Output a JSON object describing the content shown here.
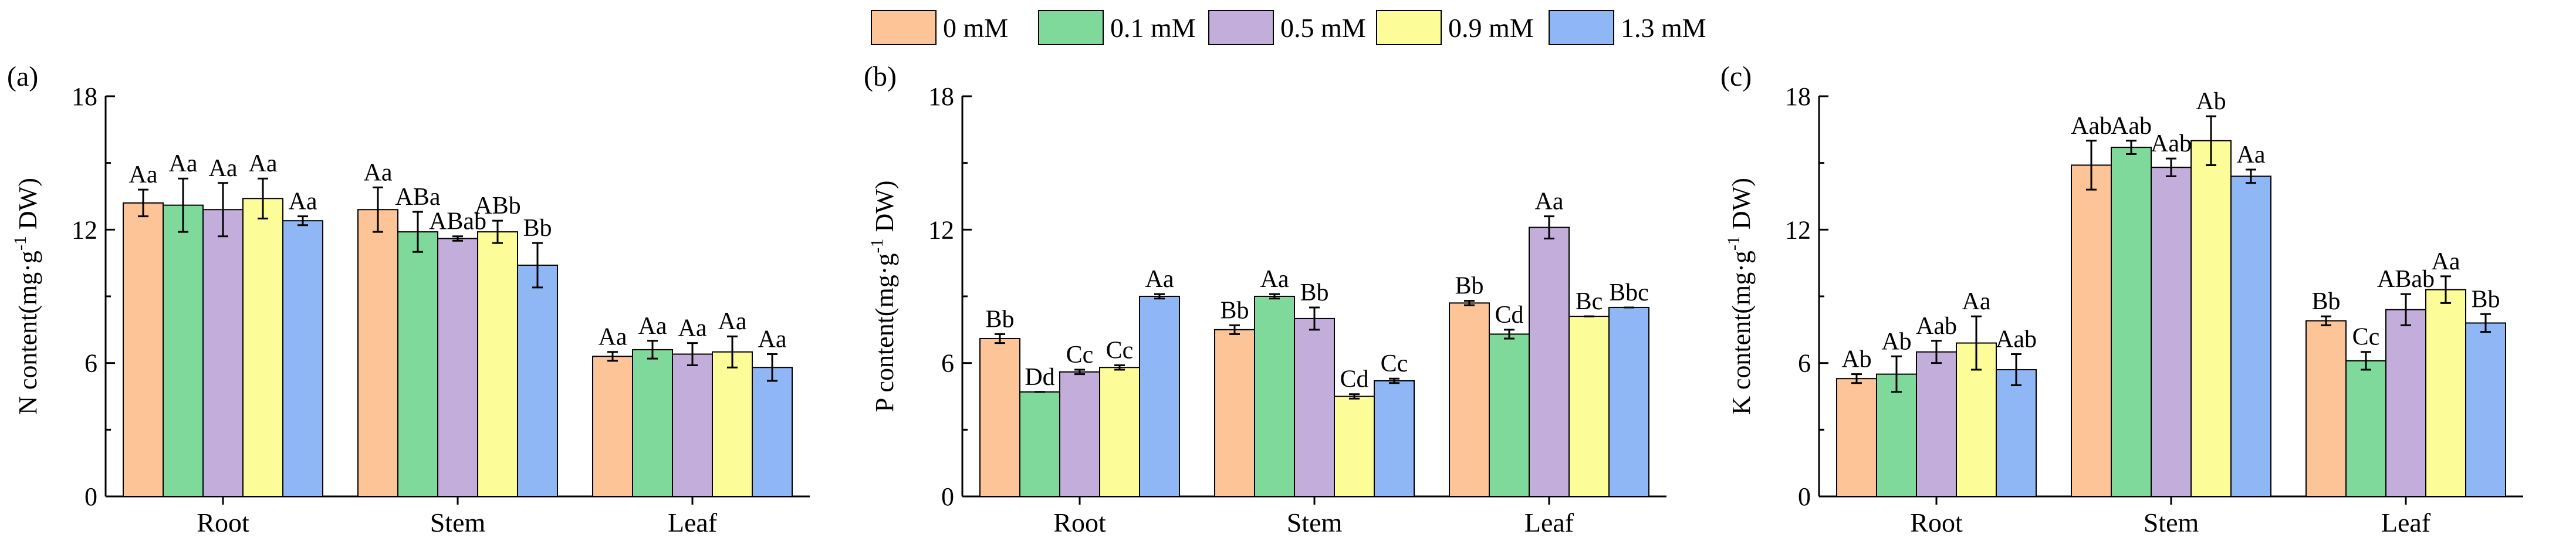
{
  "legend": [
    "0 mM",
    "0.1 mM",
    "0.5 mM",
    "0.9 mM",
    "1.3 mM"
  ],
  "colors": [
    "#FDC597",
    "#7FD99B",
    "#C3AEDB",
    "#FCFC99",
    "#8FB7F5"
  ],
  "chart_data": [
    {
      "type": "bar",
      "panel": "(a)",
      "ylabel_prefix": "N content(mg·g",
      "ylabel_sup": "-1",
      "ylabel_suffix": " DW)",
      "ylim": [
        0,
        18
      ],
      "yticks": [
        "0",
        "6",
        "12",
        "18"
      ],
      "categories": [
        "Root",
        "Stem",
        "Leaf"
      ],
      "series": [
        {
          "name": "0 mM",
          "values": [
            13.2,
            12.9,
            6.3
          ],
          "errors": [
            0.6,
            1.0,
            0.2
          ],
          "labels": [
            "Aa",
            "Aa",
            "Aa"
          ]
        },
        {
          "name": "0.1 mM",
          "values": [
            13.1,
            11.9,
            6.6
          ],
          "errors": [
            1.2,
            0.9,
            0.4
          ],
          "labels": [
            "Aa",
            "ABa",
            "Aa"
          ]
        },
        {
          "name": "0.5 mM",
          "values": [
            12.9,
            11.6,
            6.4
          ],
          "errors": [
            1.2,
            0.1,
            0.5
          ],
          "labels": [
            "Aa",
            "ABab",
            "Aa"
          ]
        },
        {
          "name": "0.9 mM",
          "values": [
            13.4,
            11.9,
            6.5
          ],
          "errors": [
            0.9,
            0.5,
            0.7
          ],
          "labels": [
            "Aa",
            "ABb",
            "Aa"
          ]
        },
        {
          "name": "1.3 mM",
          "values": [
            12.4,
            10.4,
            5.8
          ],
          "errors": [
            0.2,
            1.0,
            0.6
          ],
          "labels": [
            "Aa",
            "Bb",
            "Aa"
          ]
        }
      ]
    },
    {
      "type": "bar",
      "panel": "(b)",
      "ylabel_prefix": "P content(mg·g",
      "ylabel_sup": "-1",
      "ylabel_suffix": " DW)",
      "ylim": [
        0,
        18
      ],
      "yticks": [
        "0",
        "6",
        "12",
        "18"
      ],
      "categories": [
        "Root",
        "Stem",
        "Leaf"
      ],
      "series": [
        {
          "name": "0 mM",
          "values": [
            7.1,
            7.5,
            8.7
          ],
          "errors": [
            0.2,
            0.2,
            0.1
          ],
          "labels": [
            "Bb",
            "Bb",
            "Bb"
          ]
        },
        {
          "name": "0.1 mM",
          "values": [
            4.7,
            9.0,
            7.3
          ],
          "errors": [
            0.0,
            0.1,
            0.2
          ],
          "labels": [
            "Dd",
            "Aa",
            "Cd"
          ]
        },
        {
          "name": "0.5 mM",
          "values": [
            5.6,
            8.0,
            12.1
          ],
          "errors": [
            0.1,
            0.5,
            0.5
          ],
          "labels": [
            "Cc",
            "Bb",
            "Aa"
          ]
        },
        {
          "name": "0.9 mM",
          "values": [
            5.8,
            4.5,
            8.1
          ],
          "errors": [
            0.1,
            0.1,
            0.0
          ],
          "labels": [
            "Cc",
            "Cd",
            "Bc"
          ]
        },
        {
          "name": "1.3 mM",
          "values": [
            9.0,
            5.2,
            8.5
          ],
          "errors": [
            0.1,
            0.1,
            0.0
          ],
          "labels": [
            "Aa",
            "Cc",
            "Bbc"
          ]
        }
      ]
    },
    {
      "type": "bar",
      "panel": "(c)",
      "ylabel_prefix": "K content(mg·g",
      "ylabel_sup": "-1",
      "ylabel_suffix": " DW)",
      "ylim": [
        0,
        18
      ],
      "yticks": [
        "0",
        "6",
        "12",
        "18"
      ],
      "categories": [
        "Root",
        "Stem",
        "Leaf"
      ],
      "series": [
        {
          "name": "0 mM",
          "values": [
            5.3,
            14.9,
            7.9
          ],
          "errors": [
            0.2,
            1.1,
            0.2
          ],
          "labels": [
            "Ab",
            "Aab",
            "Bb"
          ]
        },
        {
          "name": "0.1 mM",
          "values": [
            5.5,
            15.7,
            6.1
          ],
          "errors": [
            0.8,
            0.3,
            0.4
          ],
          "labels": [
            "Ab",
            "Aab",
            "Cc"
          ]
        },
        {
          "name": "0.5 mM",
          "values": [
            6.5,
            14.8,
            8.4
          ],
          "errors": [
            0.5,
            0.4,
            0.7
          ],
          "labels": [
            "Aab",
            "Aab",
            "ABab"
          ]
        },
        {
          "name": "0.9 mM",
          "values": [
            6.9,
            16.0,
            9.3
          ],
          "errors": [
            1.2,
            1.1,
            0.6
          ],
          "labels": [
            "Aa",
            "Ab",
            "Aa"
          ]
        },
        {
          "name": "1.3 mM",
          "values": [
            5.7,
            14.4,
            7.8
          ],
          "errors": [
            0.7,
            0.3,
            0.4
          ],
          "labels": [
            "Aab",
            "Aa",
            "Bb"
          ]
        }
      ]
    }
  ]
}
